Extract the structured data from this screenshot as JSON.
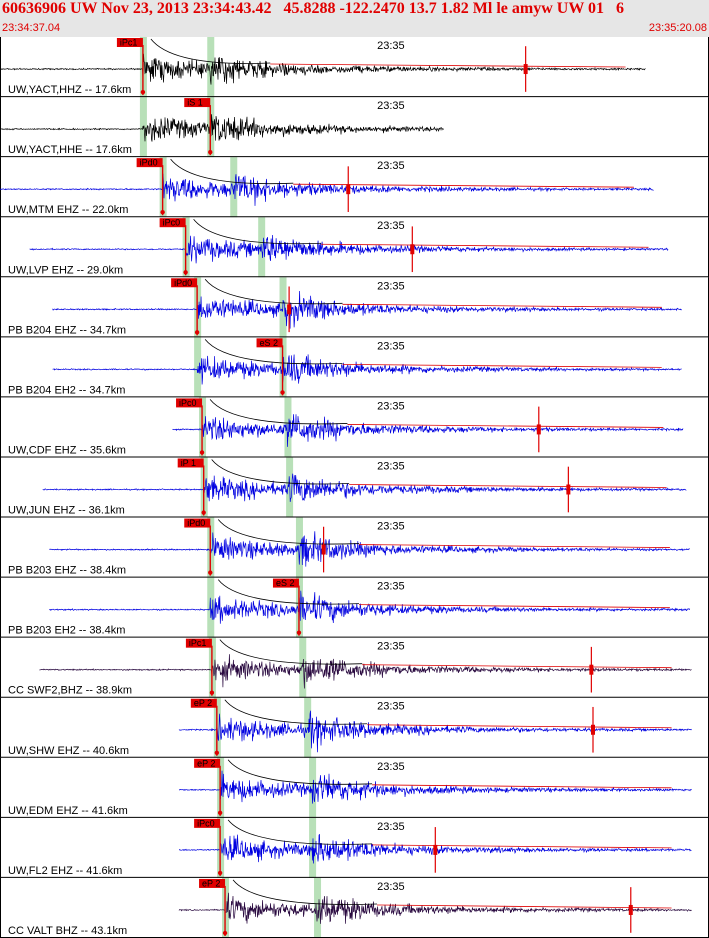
{
  "header": {
    "title": "60636906 UW Nov 23, 2013 23:34:43.42   45.8288 -122.2470 13.7 1.82 Ml le amyw UW 01   6",
    "start_time": "23:34:37.04",
    "end_time": "23:35:20.08"
  },
  "colors": {
    "header_bg": "#e6e6e6",
    "header_text": "#e00000",
    "trace_black": "#000000",
    "trace_blue": "#0000e0",
    "trace_purple": "#2a0a40",
    "pick": "#e00000",
    "pick_band": "#b8e0b8",
    "separator": "#000000"
  },
  "chart_data": {
    "type": "seismogram",
    "time_window": [
      "23:34:37.04",
      "23:35:20.08"
    ],
    "time_tick_label": "23:35",
    "traces": [
      {
        "label": "UW,YACT,HHZ -- 17.6km",
        "color": "black",
        "pick": "iPc1",
        "p_time": 8.7,
        "s_time": 12.8,
        "signal_start": 0.0,
        "signal_end": 39.3,
        "coda_spike": 32.0
      },
      {
        "label": "UW,YACT,HHE -- 17.6km",
        "color": "black",
        "pick": "iS 1",
        "p_time": 8.7,
        "s_time": 12.8,
        "signal_start": 0.0,
        "signal_end": 27.0,
        "coda_spike": null
      },
      {
        "label": "UW,MTM EHZ -- 22.0km",
        "color": "blue",
        "pick": "iPd0",
        "p_time": 9.9,
        "s_time": 14.2,
        "signal_start": 0.0,
        "signal_end": 39.8,
        "coda_spike": 21.2
      },
      {
        "label": "UW,LVP EHZ -- 29.0km",
        "color": "blue",
        "pick": "iPc0",
        "p_time": 11.3,
        "s_time": 15.9,
        "signal_start": 1.8,
        "signal_end": 40.7,
        "coda_spike": 25.1
      },
      {
        "label": "PB B204 EHZ -- 34.7km",
        "color": "blue",
        "pick": "iPd0",
        "p_time": 12.0,
        "s_time": 17.2,
        "signal_start": 3.2,
        "signal_end": 41.5,
        "coda_spike": 17.6
      },
      {
        "label": "PB B204 EH2 -- 34.7km",
        "color": "blue",
        "pick": "eS 2",
        "p_time": 12.0,
        "s_time": 17.2,
        "signal_start": 3.2,
        "signal_end": 41.5,
        "coda_spike": null
      },
      {
        "label": "UW,CDF EHZ -- 35.6km",
        "color": "blue",
        "pick": "iPc0",
        "p_time": 12.3,
        "s_time": 17.5,
        "signal_start": 10.5,
        "signal_end": 41.6,
        "coda_spike": 32.8
      },
      {
        "label": "UW,JUN EHZ -- 36.1km",
        "color": "blue",
        "pick": "iP 1",
        "p_time": 12.4,
        "s_time": 17.6,
        "signal_start": 2.6,
        "signal_end": 41.8,
        "coda_spike": 34.6
      },
      {
        "label": "PB B203 EHZ -- 38.4km",
        "color": "blue",
        "pick": "iPd0",
        "p_time": 12.8,
        "s_time": 18.2,
        "signal_start": 3.0,
        "signal_end": 42.0,
        "coda_spike": 19.7
      },
      {
        "label": "PB B203 EH2 -- 38.4km",
        "color": "blue",
        "pick": "eS 2",
        "p_time": 12.8,
        "s_time": 18.2,
        "signal_start": 3.0,
        "signal_end": 42.0,
        "coda_spike": null
      },
      {
        "label": "CC SWF2,BHZ -- 38.9km",
        "color": "purple",
        "pick": "iPc1",
        "p_time": 12.9,
        "s_time": 18.4,
        "signal_start": 2.4,
        "signal_end": 42.1,
        "coda_spike": 36.0
      },
      {
        "label": "UW,SHW EHZ -- 40.6km",
        "color": "blue",
        "pick": "eP 2",
        "p_time": 13.2,
        "s_time": 18.7,
        "signal_start": 10.9,
        "signal_end": 42.1,
        "coda_spike": 36.1
      },
      {
        "label": "UW,EDM EHZ -- 41.6km",
        "color": "blue",
        "pick": "eP 2",
        "p_time": 13.4,
        "s_time": 19.0,
        "signal_start": 10.9,
        "signal_end": 42.1,
        "coda_spike": null
      },
      {
        "label": "UW,FL2 EHZ -- 41.6km",
        "color": "blue",
        "pick": "iPc0",
        "p_time": 13.4,
        "s_time": 19.0,
        "signal_start": 10.9,
        "signal_end": 42.1,
        "coda_spike": 26.5
      },
      {
        "label": "CC VALT BHZ -- 43.1km",
        "color": "purple",
        "pick": "eP 2",
        "p_time": 13.7,
        "s_time": 19.3,
        "signal_start": 10.9,
        "signal_end": 42.1,
        "coda_spike": 38.4
      }
    ]
  }
}
